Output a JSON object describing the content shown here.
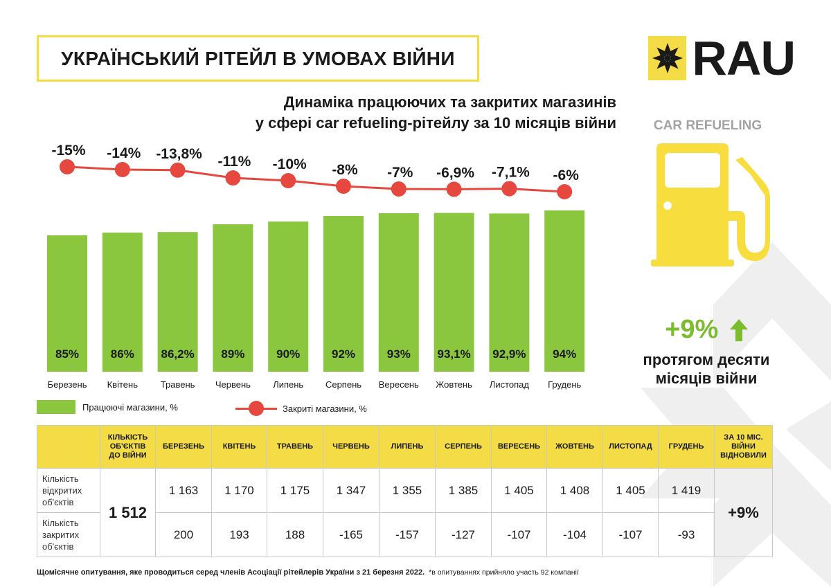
{
  "title": "УКРАЇНСЬКИЙ РІТЕЙЛ В УМОВАХ ВІЙНИ",
  "subtitle_line1": "Динаміка працюючих та закритих магазинів",
  "subtitle_line2": "у сфері car refueling-рітейлу за 10 місяців війни",
  "logo_text": "RAU",
  "category_label": "CAR REFUELING",
  "growth": {
    "value": "+9%",
    "text_line1": "протягом десяти",
    "text_line2": "місяців війни"
  },
  "legend": {
    "bars": "Працюючі магазини, %",
    "line": "Закриті магазини, %"
  },
  "colors": {
    "accent_yellow": "#f3dc45",
    "bar_green": "#8ac73e",
    "line_red": "#e64840",
    "growth_green": "#7cbd2e",
    "decor_gray": "#efefef"
  },
  "icons": {
    "logo": "rau-star-logo-icon",
    "pump": "fuel-pump-icon",
    "arrow": "arrow-up-icon"
  },
  "chart_data": {
    "type": "bar+line",
    "categories": [
      "Березень",
      "Квітень",
      "Травень",
      "Червень",
      "Липень",
      "Серпень",
      "Вересень",
      "Жовтень",
      "Листопад",
      "Грудень"
    ],
    "series": [
      {
        "name": "Працюючі магазини, %",
        "type": "bar",
        "values": [
          85,
          86,
          86.2,
          89,
          90,
          92,
          93,
          93.1,
          92.9,
          94
        ],
        "labels": [
          "85%",
          "86%",
          "86,2%",
          "89%",
          "90%",
          "92%",
          "93%",
          "93,1%",
          "92,9%",
          "94%"
        ]
      },
      {
        "name": "Закриті магазини, %",
        "type": "line",
        "values": [
          -15,
          -14,
          -13.8,
          -11,
          -10,
          -8,
          -7,
          -6.9,
          -7.1,
          -6
        ],
        "labels": [
          "-15%",
          "-14%",
          "-13,8%",
          "-11%",
          "-10%",
          "-8%",
          "-7%",
          "-6,9%",
          "-7,1%",
          "-6%"
        ]
      }
    ],
    "legend": "bottom-left",
    "grid": false
  },
  "table": {
    "headers": [
      "",
      "КІЛЬКІСТЬ ОБ'ЄКТІВ ДО ВІЙНИ",
      "БЕРЕЗЕНЬ",
      "КВІТЕНЬ",
      "ТРАВЕНЬ",
      "ЧЕРВЕНЬ",
      "ЛИПЕНЬ",
      "СЕРПЕНЬ",
      "ВЕРЕСЕНЬ",
      "ЖОВТЕНЬ",
      "ЛИСТОПАД",
      "ГРУДЕНЬ",
      "ЗА 10 МІС. ВІЙНИ ВІДНОВИЛИ"
    ],
    "row_labels": [
      "Кількість відкритих об'єктів",
      "Кількість закритих об'єктів"
    ],
    "prewar_count": "1 512",
    "open_values": [
      "1 163",
      "1 170",
      "1 175",
      "1 347",
      "1 355",
      "1 385",
      "1 405",
      "1 408",
      "1 405",
      "1 419"
    ],
    "closed_values": [
      "200",
      "193",
      "188",
      "-165",
      "-157",
      "-127",
      "-107",
      "-104",
      "-107",
      "-93"
    ],
    "recovered": "+9%"
  },
  "footnote": {
    "main": "Щомісячне опитування, яке проводиться серед членів Асоціації рітейлерів України з 21 березня 2022.",
    "note": "*в опитуваннях прийняло участь 92 компанії"
  }
}
